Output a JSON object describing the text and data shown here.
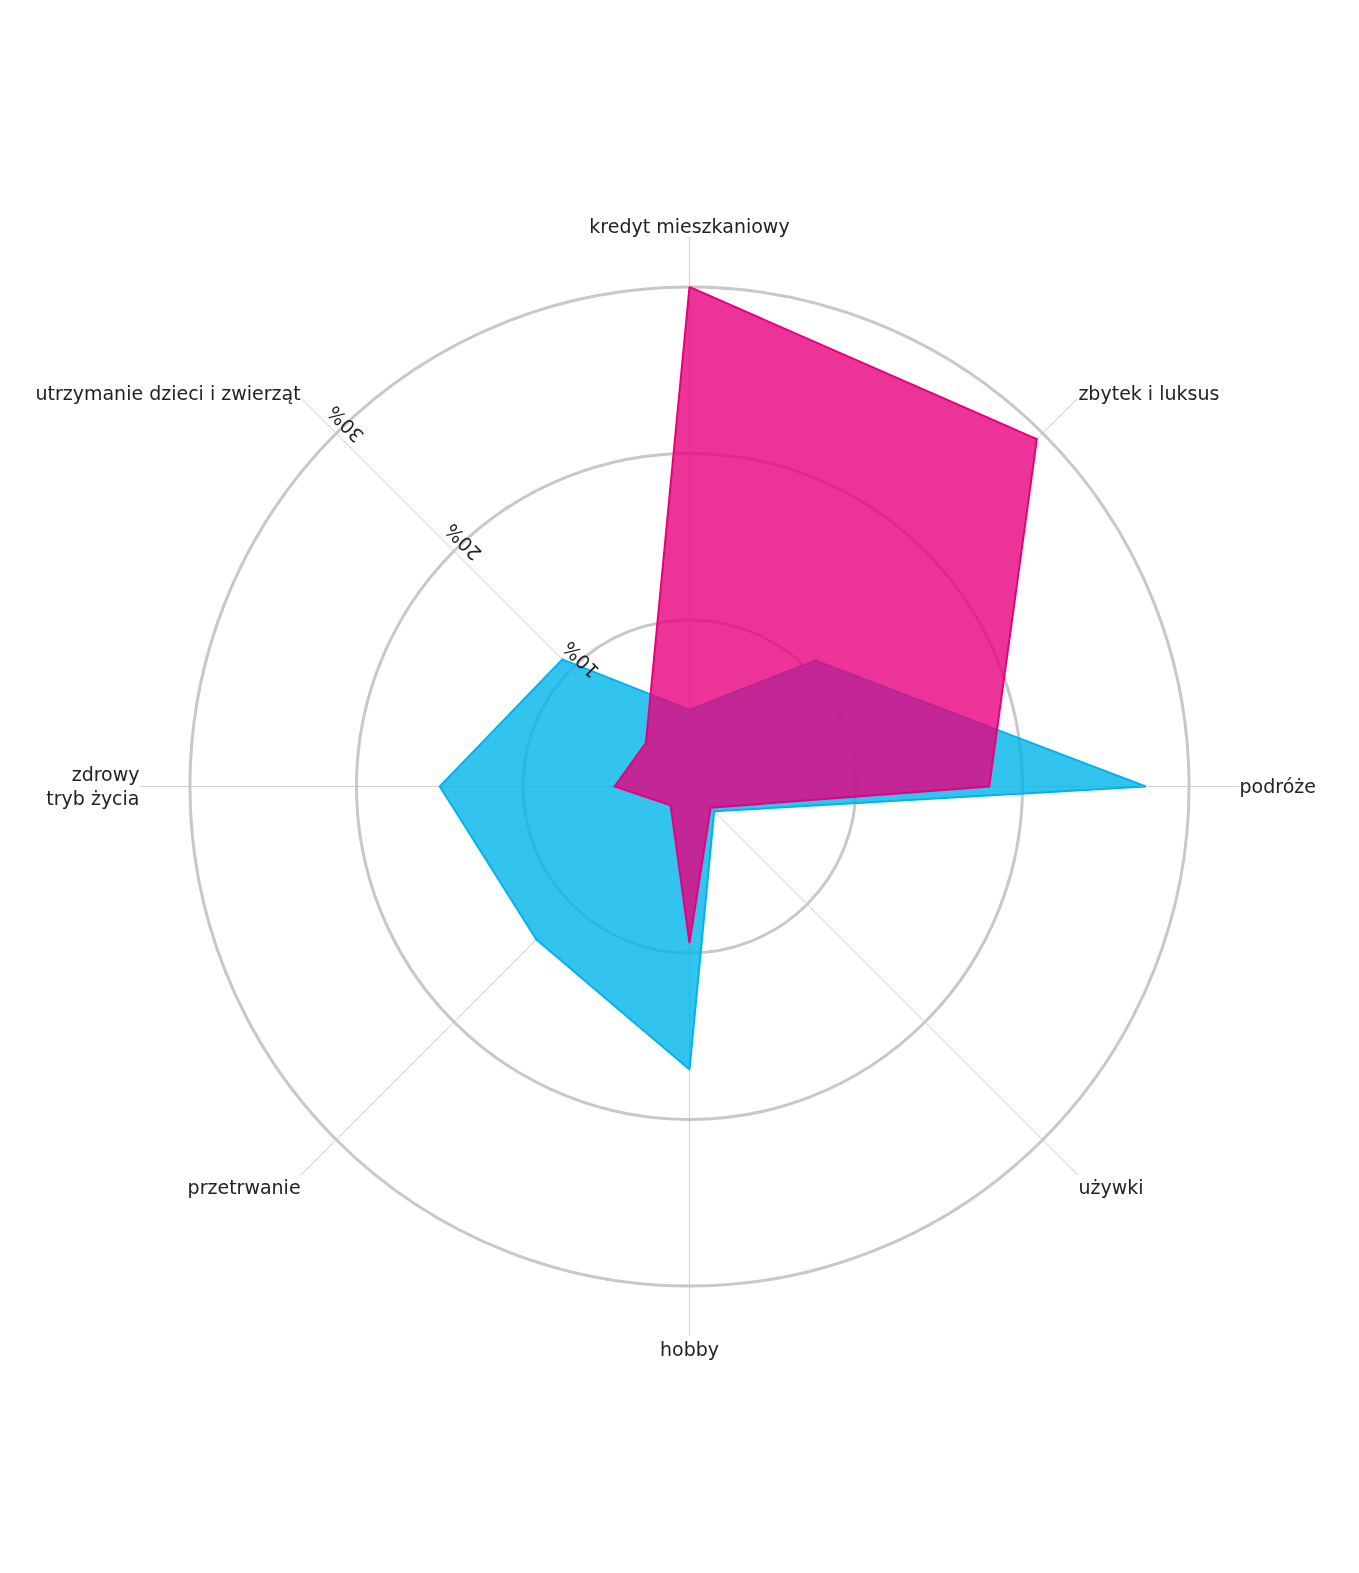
{
  "chart_data": {
    "type": "radar",
    "categories": [
      "kredyt mieszkaniowy",
      "zbytek i luksus",
      "podróże",
      "używki",
      "hobby",
      "przetrwanie",
      "zdrowy\ntryb życia",
      "utrzymanie dzieci i zwierząt"
    ],
    "series": [
      {
        "color": "#00b4eb",
        "values": [
          4.6,
          10.7,
          27.4,
          2.1,
          17,
          13,
          15,
          10.8
        ]
      },
      {
        "color": "#e6007e",
        "values": [
          30,
          29.5,
          18,
          1.8,
          9.4,
          1.6,
          4.5,
          3.7
        ]
      }
    ],
    "ylim": [
      0,
      33
    ],
    "yticks": [
      {
        "value": 10,
        "label": "10%"
      },
      {
        "value": 20,
        "label": "20%"
      },
      {
        "value": 30,
        "label": "30%"
      }
    ],
    "grid": true
  }
}
